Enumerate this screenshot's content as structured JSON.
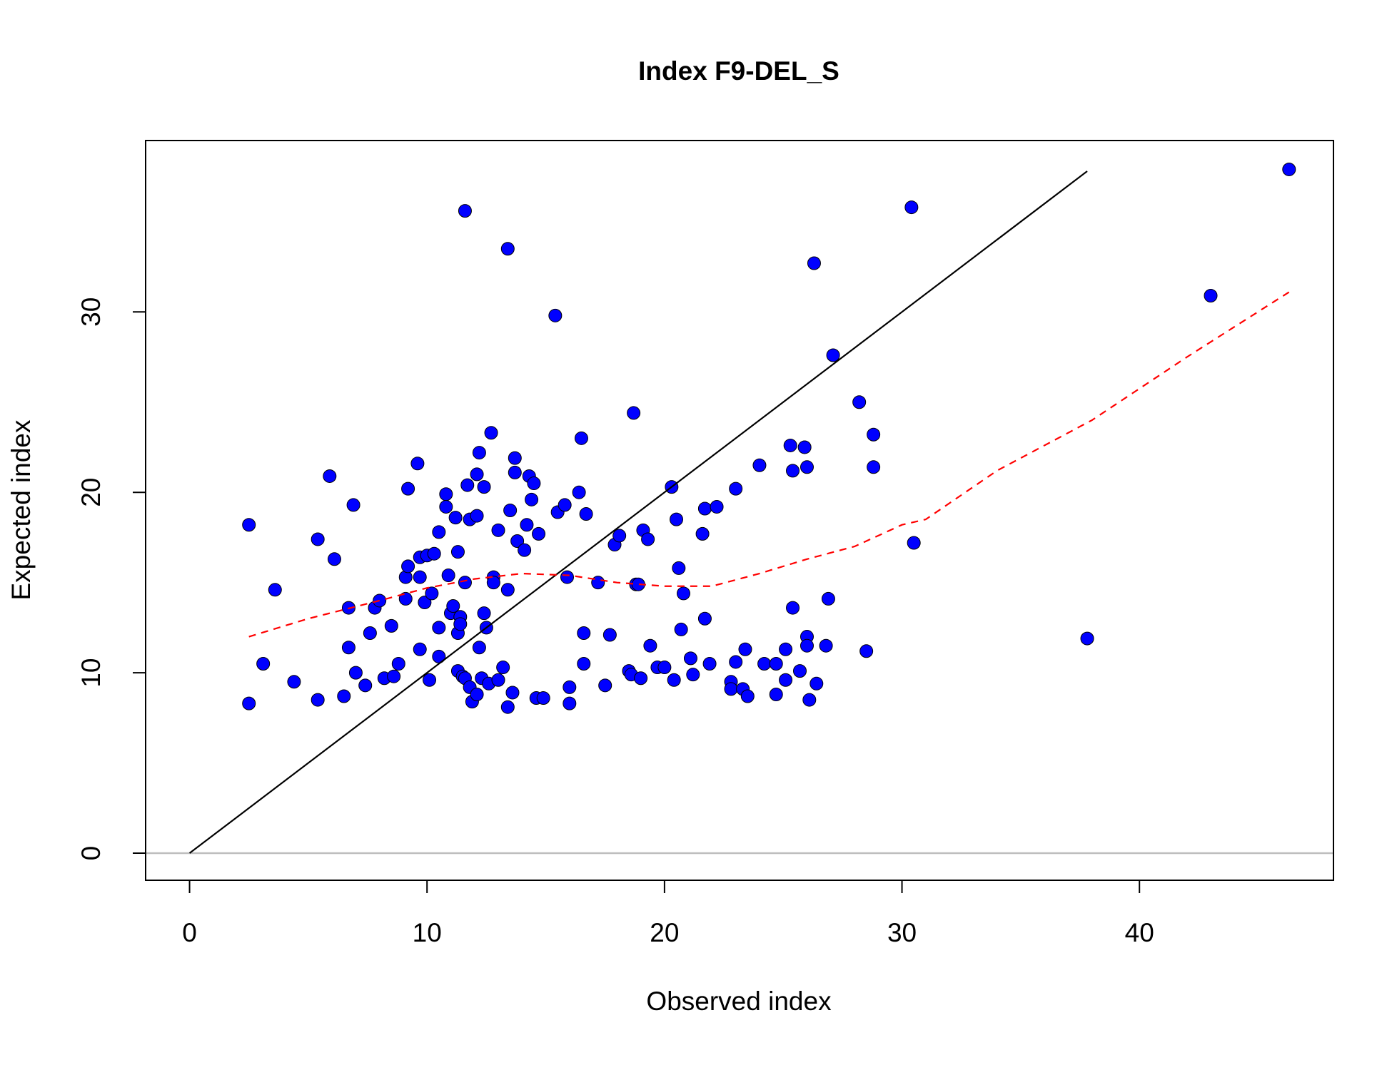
{
  "chart_data": {
    "type": "scatter",
    "title": "Index F9-DEL_S",
    "x_label": "Observed index",
    "y_label": "Expected index",
    "xlim": [
      -1.85,
      48.17
    ],
    "ylim": [
      -1.5,
      39.5
    ],
    "xticks": [
      0,
      10,
      20,
      30,
      40
    ],
    "yticks": [
      0,
      10,
      20,
      30
    ],
    "hline": {
      "value": 0,
      "color": "#bebebe"
    },
    "series": [
      {
        "type": "scatter",
        "color": "#0000ff",
        "edge_color": "#000000",
        "x": [
          2.5,
          2.5,
          3.1,
          3.6,
          4.4,
          5.4,
          5.4,
          5.9,
          6.1,
          6.5,
          6.7,
          6.7,
          6.9,
          7.0,
          7.4,
          7.6,
          7.8,
          8.0,
          8.2,
          8.5,
          8.6,
          8.8,
          9.1,
          9.1,
          9.2,
          9.2,
          9.6,
          9.7,
          9.7,
          9.7,
          9.9,
          10.0,
          10.1,
          10.2,
          10.3,
          10.5,
          10.5,
          10.5,
          10.8,
          10.8,
          10.9,
          11.0,
          11.1,
          11.2,
          11.3,
          11.3,
          11.3,
          11.4,
          11.4,
          11.5,
          11.6,
          11.6,
          11.6,
          11.7,
          11.8,
          11.8,
          11.9,
          12.1,
          12.1,
          12.1,
          12.2,
          12.2,
          12.3,
          12.4,
          12.4,
          12.5,
          12.6,
          12.7,
          12.8,
          12.8,
          13.0,
          13.0,
          13.2,
          13.4,
          13.4,
          13.4,
          13.5,
          13.6,
          13.7,
          13.7,
          13.8,
          14.1,
          14.2,
          14.3,
          14.4,
          14.5,
          14.6,
          14.7,
          14.9,
          15.4,
          15.5,
          15.8,
          15.9,
          16.0,
          16.0,
          16.4,
          16.5,
          16.6,
          16.6,
          16.7,
          17.2,
          17.5,
          17.7,
          17.9,
          18.1,
          18.5,
          18.6,
          18.7,
          18.8,
          18.9,
          19.0,
          19.1,
          19.3,
          19.4,
          19.7,
          20.0,
          20.3,
          20.4,
          20.5,
          20.6,
          20.7,
          20.8,
          21.1,
          21.2,
          21.6,
          21.7,
          21.7,
          21.9,
          22.2,
          22.8,
          22.8,
          23.0,
          23.0,
          23.3,
          23.4,
          23.5,
          24.0,
          24.2,
          24.7,
          24.7,
          25.1,
          25.1,
          25.3,
          25.4,
          25.4,
          25.7,
          25.9,
          26.0,
          26.0,
          26.0,
          26.1,
          26.3,
          26.4,
          26.8,
          26.9,
          27.1,
          28.2,
          28.5,
          28.8,
          28.8,
          30.4,
          30.5,
          37.8,
          43.0,
          46.3
        ],
        "y": [
          18.2,
          8.3,
          10.5,
          14.6,
          9.5,
          17.4,
          8.5,
          20.9,
          16.3,
          8.7,
          13.6,
          11.4,
          19.3,
          10.0,
          9.3,
          12.2,
          13.6,
          14.0,
          9.7,
          12.6,
          9.8,
          10.5,
          14.1,
          15.3,
          15.9,
          20.2,
          21.6,
          15.3,
          16.4,
          11.3,
          13.9,
          16.5,
          9.6,
          14.4,
          16.6,
          17.8,
          12.5,
          10.9,
          19.9,
          19.2,
          15.4,
          13.3,
          13.7,
          18.6,
          16.7,
          12.2,
          10.1,
          13.1,
          12.7,
          9.8,
          35.6,
          9.7,
          15.0,
          20.4,
          9.2,
          18.5,
          8.4,
          21.0,
          8.8,
          18.7,
          11.4,
          22.2,
          9.7,
          20.3,
          13.3,
          12.5,
          9.4,
          23.3,
          15.3,
          15.0,
          17.9,
          9.6,
          10.3,
          8.1,
          33.5,
          14.6,
          19.0,
          8.9,
          21.1,
          21.9,
          17.3,
          16.8,
          18.2,
          20.9,
          19.6,
          20.5,
          8.6,
          17.7,
          8.6,
          29.8,
          18.9,
          19.3,
          15.3,
          9.2,
          8.3,
          20.0,
          23.0,
          10.5,
          12.2,
          18.8,
          15.0,
          9.3,
          12.1,
          17.1,
          17.6,
          10.1,
          9.9,
          24.4,
          14.9,
          14.9,
          9.7,
          17.9,
          17.4,
          11.5,
          10.3,
          10.3,
          20.3,
          9.6,
          18.5,
          15.8,
          12.4,
          14.4,
          10.8,
          9.9,
          17.7,
          13.0,
          19.1,
          10.5,
          19.2,
          9.5,
          9.1,
          20.2,
          10.6,
          9.1,
          11.3,
          8.7,
          21.5,
          10.5,
          10.5,
          8.8,
          9.6,
          11.3,
          22.6,
          21.2,
          13.6,
          10.1,
          22.5,
          21.4,
          12.0,
          11.5,
          8.5,
          32.7,
          9.4,
          11.5,
          14.1,
          27.6,
          25.0,
          11.2,
          21.4,
          23.2,
          35.8,
          17.2,
          11.9,
          30.9,
          37.9
        ]
      },
      {
        "type": "line",
        "color": "#000000",
        "x": [
          0,
          37.8
        ],
        "y": [
          0,
          37.8
        ]
      },
      {
        "type": "line",
        "color": "#ff0000",
        "dashed": true,
        "x": [
          2.5,
          5,
          8,
          10,
          12,
          14,
          16,
          18,
          20,
          22,
          24,
          26,
          28,
          30,
          31,
          34,
          38,
          42,
          46.3
        ],
        "y": [
          12.0,
          13.0,
          14.0,
          14.7,
          15.2,
          15.5,
          15.4,
          15.0,
          14.8,
          14.8,
          15.5,
          16.3,
          17.0,
          18.2,
          18.5,
          21.2,
          24.0,
          27.5,
          31.1
        ]
      }
    ]
  }
}
